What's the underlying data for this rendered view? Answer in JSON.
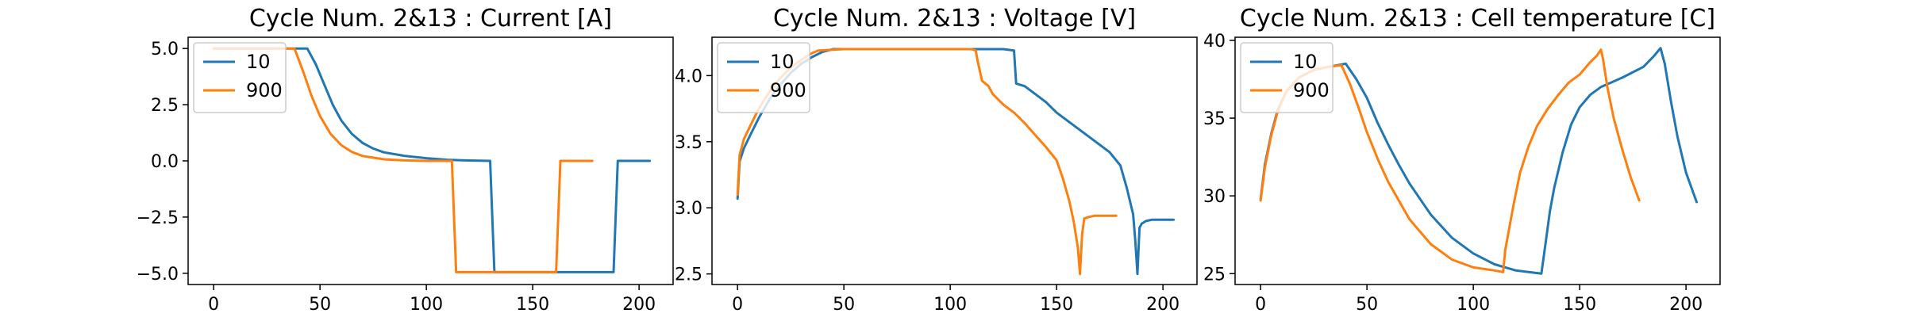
{
  "chart_data": [
    {
      "type": "line",
      "title": "Cycle Num. 2&13 : Current [A]",
      "xlim": [
        -12,
        216
      ],
      "ylim": [
        -5.5,
        5.5
      ],
      "xticks": [
        0,
        50,
        100,
        150,
        200
      ],
      "yticks": [
        -5.0,
        -2.5,
        0.0,
        2.5,
        5.0
      ],
      "ytick_labels": [
        "−5.0",
        "−2.5",
        "0.0",
        "2.5",
        "5.0"
      ],
      "legend": "upper-left",
      "series": [
        {
          "name": "10",
          "color": "#1f77b4",
          "x": [
            0,
            20,
            40,
            44,
            48,
            52,
            56,
            60,
            65,
            70,
            75,
            80,
            90,
            100,
            110,
            118,
            130,
            131,
            132,
            140,
            160,
            188,
            189,
            190,
            205
          ],
          "y": [
            5.0,
            5.0,
            5.0,
            5.0,
            4.3,
            3.4,
            2.5,
            1.8,
            1.2,
            0.8,
            0.55,
            0.38,
            0.22,
            0.12,
            0.05,
            0.02,
            0.0,
            -2.5,
            -4.95,
            -4.95,
            -4.95,
            -4.95,
            -2.5,
            0.0,
            0.0
          ]
        },
        {
          "name": "900",
          "color": "#ff7f0e",
          "x": [
            0,
            20,
            38,
            42,
            46,
            50,
            55,
            60,
            65,
            70,
            80,
            90,
            100,
            112,
            113,
            114,
            130,
            150,
            161,
            162,
            163,
            178
          ],
          "y": [
            5.0,
            5.0,
            5.0,
            4.0,
            2.9,
            2.0,
            1.2,
            0.7,
            0.4,
            0.22,
            0.07,
            0.02,
            0.0,
            0.0,
            -2.5,
            -4.95,
            -4.95,
            -4.95,
            -4.95,
            -2.5,
            0.0,
            0.0
          ]
        }
      ]
    },
    {
      "type": "line",
      "title": "Cycle Num. 2&13 : Voltage [V]",
      "xlim": [
        -12,
        216
      ],
      "ylim": [
        2.42,
        4.29
      ],
      "xticks": [
        0,
        50,
        100,
        150,
        200
      ],
      "yticks": [
        2.5,
        3.0,
        3.5,
        4.0
      ],
      "ytick_labels": [
        "2.5",
        "3.0",
        "3.5",
        "4.0"
      ],
      "legend": "upper-left",
      "series": [
        {
          "name": "10",
          "color": "#1f77b4",
          "x": [
            0,
            1,
            3,
            6,
            10,
            15,
            20,
            25,
            30,
            35,
            40,
            45,
            50,
            60,
            80,
            100,
            115,
            125,
            130,
            131,
            135,
            140,
            145,
            150,
            160,
            170,
            175,
            180,
            183,
            186,
            187,
            188,
            189,
            190,
            192,
            195,
            205
          ],
          "y": [
            3.07,
            3.35,
            3.45,
            3.55,
            3.68,
            3.82,
            3.93,
            4.02,
            4.09,
            4.14,
            4.18,
            4.2,
            4.2,
            4.2,
            4.2,
            4.2,
            4.2,
            4.2,
            4.19,
            3.94,
            3.92,
            3.86,
            3.8,
            3.72,
            3.6,
            3.48,
            3.42,
            3.32,
            3.15,
            2.95,
            2.75,
            2.5,
            2.85,
            2.88,
            2.9,
            2.91,
            2.91
          ],
          "pt_ox": [
            0,
            2,
            4,
            7,
            7,
            6,
            7,
            7,
            6,
            6,
            6,
            6,
            6,
            5,
            6,
            7,
            7,
            7,
            8,
            0,
            0,
            7,
            6,
            7,
            7,
            6,
            7,
            7,
            6,
            6,
            5,
            3,
            3,
            5,
            7,
            6,
            0
          ],
          "pt_oy": [
            1,
            0,
            3,
            1,
            1,
            0,
            0,
            0,
            0,
            2,
            4,
            0,
            0,
            2,
            7,
            7,
            2,
            0,
            7,
            8,
            2,
            0,
            8,
            2,
            7,
            7,
            3,
            6,
            4,
            0,
            3,
            3,
            3,
            6,
            3,
            6,
            6
          ]
        },
        {
          "name": "900",
          "color": "#ff7f0e",
          "x": [
            0,
            1,
            3,
            6,
            10,
            15,
            20,
            25,
            30,
            35,
            38,
            50,
            70,
            90,
            110,
            112,
            113,
            115,
            118,
            120,
            125,
            130,
            135,
            140,
            145,
            150,
            153,
            156,
            158,
            160,
            161,
            162,
            163,
            165,
            168,
            172,
            178
          ],
          "y": [
            3.1,
            3.4,
            3.52,
            3.62,
            3.75,
            3.88,
            3.98,
            4.06,
            4.12,
            4.17,
            4.19,
            4.2,
            4.2,
            4.2,
            4.2,
            4.19,
            4.1,
            3.96,
            3.92,
            3.86,
            3.78,
            3.72,
            3.64,
            3.55,
            3.46,
            3.36,
            3.22,
            3.05,
            2.9,
            2.7,
            2.5,
            2.8,
            2.92,
            2.93,
            2.94,
            2.94,
            2.94
          ]
        }
      ]
    },
    {
      "type": "line",
      "title": "Cycle Num. 2&13 : Cell temperature [C]",
      "xlim": [
        -12,
        216
      ],
      "ylim": [
        24.3,
        40.2
      ],
      "xticks": [
        0,
        50,
        100,
        150,
        200
      ],
      "yticks": [
        25,
        30,
        35,
        40
      ],
      "ytick_labels": [
        "25",
        "30",
        "35",
        "40"
      ],
      "legend": "upper-left",
      "series": [
        {
          "name": "10",
          "color": "#1f77b4",
          "x": [
            0,
            2,
            5,
            8,
            12,
            18,
            25,
            32,
            40,
            45,
            50,
            55,
            60,
            65,
            70,
            80,
            90,
            100,
            110,
            120,
            132,
            134,
            136,
            138,
            142,
            146,
            150,
            155,
            160,
            170,
            180,
            185,
            188,
            190,
            193,
            196,
            200,
            205
          ],
          "y": [
            29.8,
            32.0,
            34.0,
            35.5,
            36.7,
            37.6,
            38.1,
            38.3,
            38.5,
            37.5,
            36.3,
            34.7,
            33.3,
            32.0,
            30.8,
            28.8,
            27.3,
            26.3,
            25.6,
            25.2,
            25.0,
            27.0,
            29.0,
            30.5,
            32.8,
            34.6,
            35.7,
            36.5,
            37.0,
            37.6,
            38.3,
            39.0,
            39.5,
            38.5,
            36.0,
            33.8,
            31.5,
            29.6
          ]
        },
        {
          "name": "900",
          "color": "#ff7f0e",
          "x": [
            0,
            2,
            5,
            8,
            12,
            18,
            25,
            32,
            38,
            42,
            46,
            50,
            55,
            60,
            70,
            80,
            90,
            100,
            110,
            114,
            115,
            117,
            119,
            122,
            126,
            130,
            135,
            140,
            145,
            150,
            155,
            158,
            160,
            161,
            163,
            166,
            170,
            174,
            178
          ],
          "y": [
            29.7,
            31.8,
            33.9,
            35.4,
            36.7,
            37.6,
            38.1,
            38.3,
            38.4,
            37.2,
            35.7,
            34.1,
            32.4,
            30.9,
            28.5,
            26.9,
            25.9,
            25.4,
            25.2,
            25.1,
            26.5,
            28.0,
            29.5,
            31.5,
            33.2,
            34.5,
            35.6,
            36.5,
            37.3,
            37.8,
            38.6,
            39.0,
            39.4,
            38.8,
            37.0,
            35.0,
            33.0,
            31.2,
            29.7
          ]
        }
      ]
    }
  ]
}
